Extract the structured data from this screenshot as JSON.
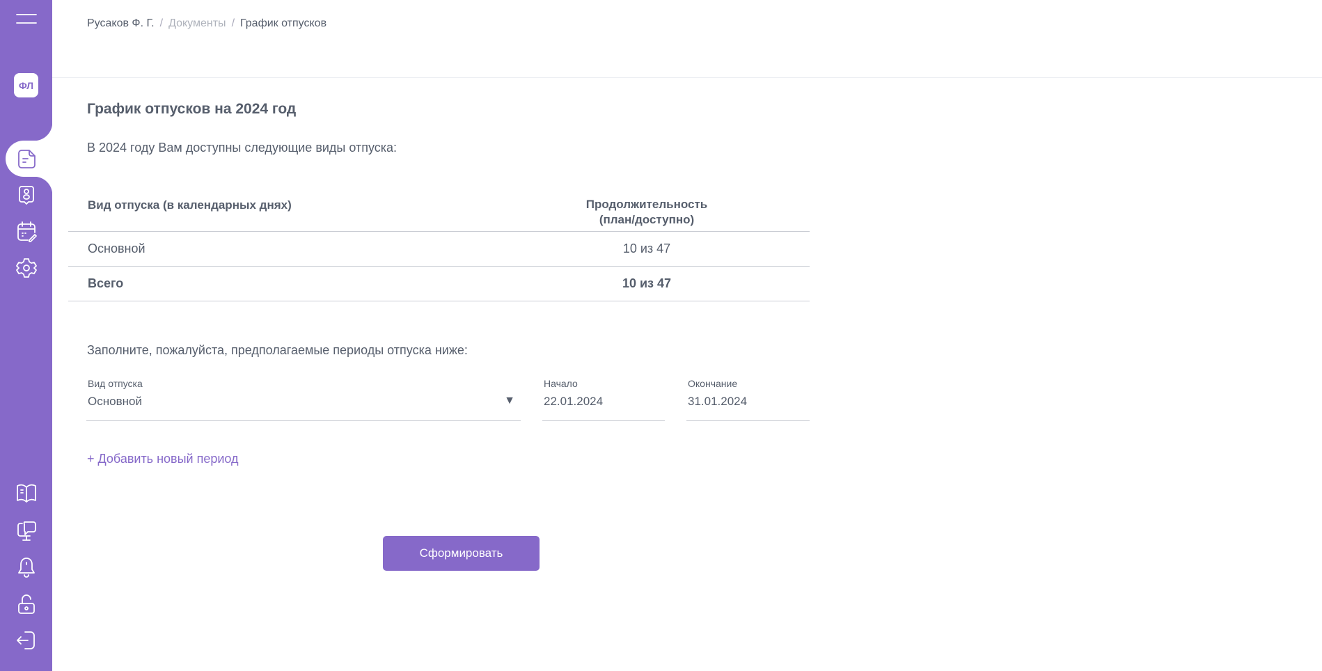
{
  "sidebar": {
    "avatar": "ФЛ",
    "accent": "#8669c9",
    "icons": [
      "menu-icon",
      "document-icon",
      "profile-icon",
      "calendar-edit-icon",
      "settings-icon",
      "book-icon",
      "chat-monitor-icon",
      "bell-icon",
      "unlock-icon",
      "logout-icon"
    ]
  },
  "breadcrumb": {
    "items": [
      "Русаков Ф. Г.",
      "Документы",
      "График отпусков"
    ],
    "separator": "/"
  },
  "page": {
    "title": "График отпусков на 2024 год",
    "intro": "В 2024 году Вам доступны следующие виды отпуска:",
    "fill_prompt": "Заполните, пожалуйста, предполагаемые периоды отпуска ниже:"
  },
  "table": {
    "headers": [
      "Вид отпуска (в календарных днях)",
      "Продолжительность (план/доступно)"
    ],
    "rows": [
      {
        "type": "Основной",
        "duration": "10 из 47"
      }
    ],
    "total": {
      "label": "Всего",
      "duration": "10 из 47"
    }
  },
  "form": {
    "type_label": "Вид отпуска",
    "type_value": "Основной",
    "start_label": "Начало",
    "start_value": "22.01.2024",
    "end_label": "Окончание",
    "end_value": "31.01.2024",
    "add_period": "+ Добавить новый период",
    "submit": "Сформировать"
  }
}
